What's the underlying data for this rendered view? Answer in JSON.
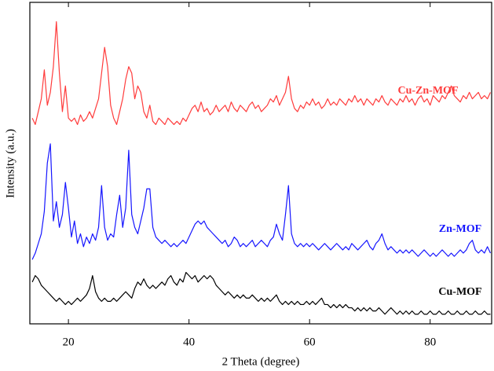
{
  "chart_data": {
    "type": "line",
    "xlabel": "2 Theta (degree)",
    "ylabel": "Intensity (a.u.)",
    "xlim": [
      13.6,
      90.2
    ],
    "xticks": [
      20,
      40,
      60,
      80
    ],
    "ylim": [
      0,
      100
    ],
    "x": [
      14,
      14.5,
      15,
      15.5,
      16,
      16.5,
      17,
      17.5,
      18,
      18.5,
      19,
      19.5,
      20,
      20.5,
      21,
      21.5,
      22,
      22.5,
      23,
      23.5,
      24,
      24.5,
      25,
      25.5,
      26,
      26.5,
      27,
      27.5,
      28,
      28.5,
      29,
      29.5,
      30,
      30.5,
      31,
      31.5,
      32,
      32.5,
      33,
      33.5,
      34,
      34.5,
      35,
      35.5,
      36,
      36.5,
      37,
      37.5,
      38,
      38.5,
      39,
      39.5,
      40,
      40.5,
      41,
      41.5,
      42,
      42.5,
      43,
      43.5,
      44,
      44.5,
      45,
      45.5,
      46,
      46.5,
      47,
      47.5,
      48,
      48.5,
      49,
      49.5,
      50,
      50.5,
      51,
      51.5,
      52,
      52.5,
      53,
      53.5,
      54,
      54.5,
      55,
      55.5,
      56,
      56.5,
      57,
      57.5,
      58,
      58.5,
      59,
      59.5,
      60,
      60.5,
      61,
      61.5,
      62,
      62.5,
      63,
      63.5,
      64,
      64.5,
      65,
      65.5,
      66,
      66.5,
      67,
      67.5,
      68,
      68.5,
      69,
      69.5,
      70,
      70.5,
      71,
      71.5,
      72,
      72.5,
      73,
      73.5,
      74,
      74.5,
      75,
      75.5,
      76,
      76.5,
      77,
      77.5,
      78,
      78.5,
      79,
      79.5,
      80,
      80.5,
      81,
      81.5,
      82,
      82.5,
      83,
      83.5,
      84,
      84.5,
      85,
      85.5,
      86,
      86.5,
      87,
      87.5,
      88,
      88.5,
      89,
      89.5,
      90
    ],
    "series": [
      {
        "name": "Cu-Zn-MOF",
        "color": "#ff3b3b",
        "values": [
          64,
          62,
          66,
          70,
          79,
          68,
          72,
          80,
          94,
          78,
          66,
          74,
          64,
          63,
          64,
          62,
          65,
          63,
          64,
          66,
          64,
          67,
          70,
          78,
          86,
          80,
          68,
          64,
          62,
          66,
          70,
          76,
          80,
          78,
          70,
          74,
          72,
          66,
          64,
          68,
          63,
          62,
          64,
          63,
          62,
          64,
          63,
          62,
          63,
          62,
          64,
          63,
          65,
          67,
          68,
          66,
          69,
          66,
          67,
          65,
          66,
          68,
          66,
          67,
          68,
          66,
          69,
          67,
          66,
          68,
          67,
          66,
          68,
          69,
          67,
          68,
          66,
          67,
          68,
          70,
          69,
          71,
          68,
          70,
          72,
          77,
          70,
          67,
          66,
          68,
          67,
          69,
          68,
          70,
          68,
          69,
          67,
          68,
          70,
          68,
          69,
          68,
          70,
          69,
          68,
          70,
          69,
          71,
          69,
          70,
          68,
          70,
          69,
          68,
          70,
          69,
          71,
          69,
          68,
          70,
          69,
          68,
          70,
          69,
          71,
          69,
          70,
          68,
          70,
          71,
          69,
          70,
          68,
          71,
          70,
          69,
          71,
          70,
          72,
          74,
          71,
          70,
          69,
          71,
          70,
          72,
          70,
          71,
          72,
          70,
          71,
          70,
          72
        ]
      },
      {
        "name": "Zn-MOF",
        "color": "#1515ff",
        "values": [
          20,
          22,
          25,
          28,
          35,
          50,
          56,
          32,
          38,
          30,
          34,
          44,
          36,
          27,
          32,
          25,
          28,
          24,
          27,
          25,
          28,
          26,
          30,
          43,
          30,
          26,
          28,
          27,
          34,
          40,
          30,
          36,
          54,
          34,
          30,
          28,
          32,
          36,
          42,
          42,
          30,
          27,
          26,
          25,
          26,
          25,
          24,
          25,
          24,
          25,
          26,
          25,
          27,
          29,
          31,
          32,
          31,
          32,
          30,
          29,
          28,
          27,
          26,
          25,
          26,
          24,
          25,
          27,
          26,
          24,
          25,
          24,
          25,
          26,
          24,
          25,
          26,
          25,
          24,
          26,
          27,
          31,
          28,
          26,
          34,
          43,
          28,
          25,
          24,
          25,
          24,
          25,
          24,
          25,
          24,
          23,
          24,
          25,
          24,
          23,
          24,
          25,
          24,
          23,
          24,
          23,
          25,
          24,
          23,
          24,
          25,
          26,
          24,
          23,
          25,
          26,
          28,
          25,
          23,
          24,
          23,
          22,
          23,
          22,
          23,
          22,
          23,
          22,
          21,
          22,
          23,
          22,
          21,
          22,
          21,
          22,
          23,
          22,
          21,
          22,
          21,
          22,
          23,
          22,
          23,
          25,
          26,
          23,
          22,
          23,
          22,
          24,
          22
        ]
      },
      {
        "name": "Cu-MOF",
        "color": "#000000",
        "values": [
          13,
          15,
          14,
          12,
          11,
          10,
          9,
          8,
          7,
          8,
          7,
          6,
          7,
          6,
          7,
          8,
          7,
          8,
          9,
          11,
          15,
          10,
          8,
          7,
          8,
          7,
          7,
          8,
          7,
          8,
          9,
          10,
          9,
          8,
          11,
          13,
          12,
          14,
          12,
          11,
          12,
          11,
          12,
          13,
          12,
          14,
          15,
          13,
          12,
          14,
          13,
          16,
          15,
          14,
          15,
          13,
          14,
          15,
          14,
          15,
          14,
          12,
          11,
          10,
          9,
          10,
          9,
          8,
          9,
          8,
          9,
          8,
          8,
          9,
          8,
          7,
          8,
          7,
          8,
          7,
          8,
          9,
          7,
          6,
          7,
          6,
          7,
          6,
          7,
          6,
          6,
          7,
          6,
          7,
          6,
          7,
          8,
          6,
          6,
          5,
          6,
          5,
          6,
          5,
          6,
          5,
          5,
          4,
          5,
          4,
          5,
          4,
          5,
          4,
          4,
          5,
          4,
          3,
          4,
          5,
          4,
          3,
          4,
          3,
          4,
          3,
          4,
          3,
          3,
          4,
          3,
          3,
          4,
          3,
          3,
          4,
          3,
          3,
          4,
          3,
          3,
          4,
          3,
          3,
          4,
          3,
          3,
          4,
          3,
          3,
          4,
          3,
          3
        ]
      }
    ]
  }
}
